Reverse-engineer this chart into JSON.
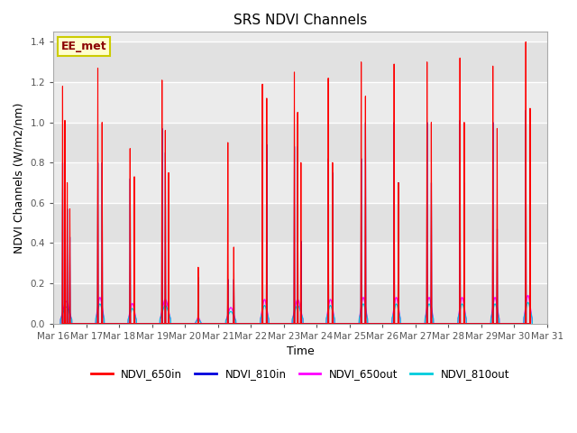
{
  "title": "SRS NDVI Channels",
  "xlabel": "Time",
  "ylabel": "NDVI Channels (W/m2/nm)",
  "annotation": "EE_met",
  "xlim_days": [
    16,
    31
  ],
  "ylim": [
    0,
    1.45
  ],
  "yticks": [
    0.0,
    0.2,
    0.4,
    0.6,
    0.8,
    1.0,
    1.2,
    1.4
  ],
  "xtick_labels": [
    "Mar 16",
    "Mar 17",
    "Mar 18",
    "Mar 19",
    "Mar 20",
    "Mar 21",
    "Mar 22",
    "Mar 23",
    "Mar 24",
    "Mar 25",
    "Mar 26",
    "Mar 27",
    "Mar 28",
    "Mar 29",
    "Mar 30",
    "Mar 31"
  ],
  "bg_color": "#ebebeb",
  "grid_color": "#ffffff",
  "colors": {
    "NDVI_650in": "#ff0000",
    "NDVI_810in": "#0000dd",
    "NDVI_650out": "#ff00ff",
    "NDVI_810out": "#00ccdd"
  },
  "legend_labels": [
    "NDVI_650in",
    "NDVI_810in",
    "NDVI_650out",
    "NDVI_810out"
  ],
  "daily_peaks": [
    {
      "day": 16,
      "peaks_650in": [
        1.18,
        1.01,
        0.7,
        0.57
      ],
      "peaks_810in": [
        0.8,
        0.65,
        0.57,
        0.43
      ],
      "out_scale": 0.11,
      "n_peaks": 4,
      "offsets": [
        0.28,
        0.35,
        0.42,
        0.5
      ]
    },
    {
      "day": 17,
      "peaks_650in": [
        1.27,
        1.0
      ],
      "peaks_810in": [
        0.8,
        0.8
      ],
      "out_scale": 0.13,
      "n_peaks": 2,
      "offsets": [
        0.35,
        0.48
      ]
    },
    {
      "day": 18,
      "peaks_650in": [
        0.87,
        0.73
      ],
      "peaks_810in": [
        0.72,
        0.57
      ],
      "out_scale": 0.1,
      "n_peaks": 2,
      "offsets": [
        0.33,
        0.46
      ]
    },
    {
      "day": 19,
      "peaks_650in": [
        1.21,
        0.96,
        0.75
      ],
      "peaks_810in": [
        0.97,
        0.85,
        0.58
      ],
      "out_scale": 0.12,
      "n_peaks": 3,
      "offsets": [
        0.3,
        0.4,
        0.5
      ]
    },
    {
      "day": 20,
      "peaks_650in": [
        0.28
      ],
      "peaks_810in": [
        0.23
      ],
      "out_scale": 0.03,
      "n_peaks": 1,
      "offsets": [
        0.4
      ]
    },
    {
      "day": 21,
      "peaks_650in": [
        0.9,
        0.38
      ],
      "peaks_810in": [
        0.22,
        0.22
      ],
      "out_scale": 0.08,
      "n_peaks": 2,
      "offsets": [
        0.3,
        0.48
      ]
    },
    {
      "day": 22,
      "peaks_650in": [
        1.19,
        1.12
      ],
      "peaks_810in": [
        0.89,
        0.89
      ],
      "out_scale": 0.12,
      "n_peaks": 2,
      "offsets": [
        0.35,
        0.48
      ]
    },
    {
      "day": 23,
      "peaks_650in": [
        1.25,
        1.05,
        0.8
      ],
      "peaks_810in": [
        0.88,
        0.88,
        0.41
      ],
      "out_scale": 0.12,
      "n_peaks": 3,
      "offsets": [
        0.32,
        0.42,
        0.52
      ]
    },
    {
      "day": 24,
      "peaks_650in": [
        1.22,
        0.8
      ],
      "peaks_810in": [
        0.82,
        0.75
      ],
      "out_scale": 0.12,
      "n_peaks": 2,
      "offsets": [
        0.35,
        0.48
      ]
    },
    {
      "day": 25,
      "peaks_650in": [
        1.3,
        1.13
      ],
      "peaks_810in": [
        0.82,
        1.0
      ],
      "out_scale": 0.13,
      "n_peaks": 2,
      "offsets": [
        0.35,
        0.48
      ]
    },
    {
      "day": 26,
      "peaks_650in": [
        1.29,
        0.7
      ],
      "peaks_810in": [
        1.0,
        0.7
      ],
      "out_scale": 0.13,
      "n_peaks": 2,
      "offsets": [
        0.35,
        0.48
      ]
    },
    {
      "day": 27,
      "peaks_650in": [
        1.3,
        1.0
      ],
      "peaks_810in": [
        1.0,
        0.7
      ],
      "out_scale": 0.13,
      "n_peaks": 2,
      "offsets": [
        0.35,
        0.48
      ]
    },
    {
      "day": 28,
      "peaks_650in": [
        1.32,
        1.0
      ],
      "peaks_810in": [
        1.01,
        0.7
      ],
      "out_scale": 0.13,
      "n_peaks": 2,
      "offsets": [
        0.35,
        0.48
      ]
    },
    {
      "day": 29,
      "peaks_650in": [
        1.28,
        0.97
      ],
      "peaks_810in": [
        1.0,
        0.47
      ],
      "out_scale": 0.13,
      "n_peaks": 2,
      "offsets": [
        0.35,
        0.48
      ]
    },
    {
      "day": 30,
      "peaks_650in": [
        1.4,
        1.07
      ],
      "peaks_810in": [
        1.06,
        0.47
      ],
      "out_scale": 0.14,
      "n_peaks": 2,
      "offsets": [
        0.35,
        0.48
      ]
    }
  ]
}
